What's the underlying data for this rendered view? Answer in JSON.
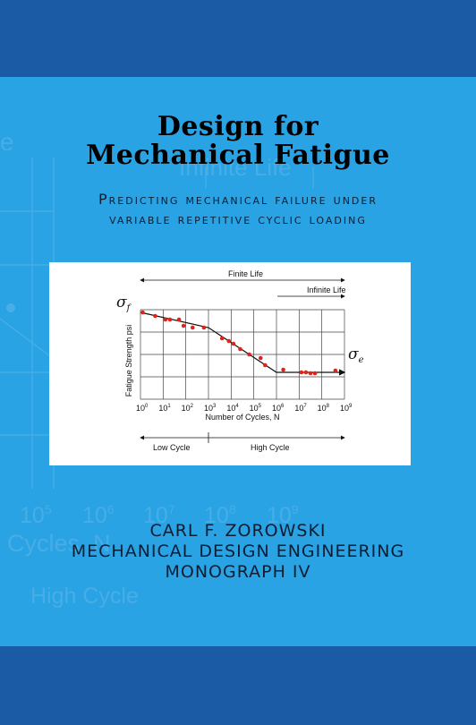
{
  "cover": {
    "title_line1": "Design for",
    "title_line2": "Mechanical Fatigue",
    "subtitle_line1": "Predicting mechanical failure under",
    "subtitle_line2": "variable repetitive cyclic loading",
    "author": "CARL F. ZOROWSKI",
    "series_line1": "MECHANICAL DESIGN ENGINEERING",
    "series_line2": "MONOGRAPH IV",
    "colors": {
      "band": "#1b5ba6",
      "panel": "#2aa3e4",
      "title": "#000000",
      "data_points": "#e0241b"
    }
  },
  "background_art": {
    "labels": [
      "Infinite Life",
      "e",
      "Cycles, N",
      "High Cycle"
    ],
    "ticks": [
      "10",
      "10",
      "10",
      "10",
      "10"
    ],
    "exponents": [
      "5",
      "6",
      "7",
      "8",
      "9"
    ]
  },
  "figure": {
    "sigma_f_label": "σ",
    "sigma_f_sub": "f",
    "sigma_e_label": "σ",
    "sigma_e_sub": "e",
    "finite_life_label": "Finite Life",
    "infinite_life_label": "Infinite Life",
    "ylabel": "Fatigue Strength psi",
    "xlabel": "Number of Cycles, N",
    "low_cycle_label": "Low Cycle",
    "high_cycle_label": "High Cycle",
    "x_tick_base": "10",
    "x_tick_exponents": [
      "0",
      "1",
      "2",
      "3",
      "4",
      "5",
      "6",
      "7",
      "8",
      "9"
    ]
  },
  "chart_data": {
    "type": "scatter",
    "title": "",
    "xlabel": "Number of Cycles, N",
    "ylabel": "Fatigue Strength psi",
    "x_scale": "log",
    "xlim_log10": [
      0,
      9
    ],
    "grid": true,
    "series": [
      {
        "x_log10": [
          0.1,
          0.65,
          1.1,
          1.3,
          1.7,
          1.9,
          2.3,
          2.8,
          3.6,
          3.9,
          4.1,
          4.4,
          4.8,
          5.3,
          5.5,
          6.3,
          7.1,
          7.3,
          7.5,
          7.7,
          8.6
        ],
        "y": [
          0.97,
          0.93,
          0.89,
          0.89,
          0.89,
          0.82,
          0.8,
          0.8,
          0.68,
          0.65,
          0.62,
          0.56,
          0.5,
          0.46,
          0.38,
          0.33,
          0.3,
          0.3,
          0.29,
          0.29,
          0.32
        ]
      }
    ],
    "trend_x_log10": [
      0,
      3,
      6,
      9
    ],
    "trend_y": [
      0.97,
      0.8,
      0.3,
      0.3
    ]
  }
}
